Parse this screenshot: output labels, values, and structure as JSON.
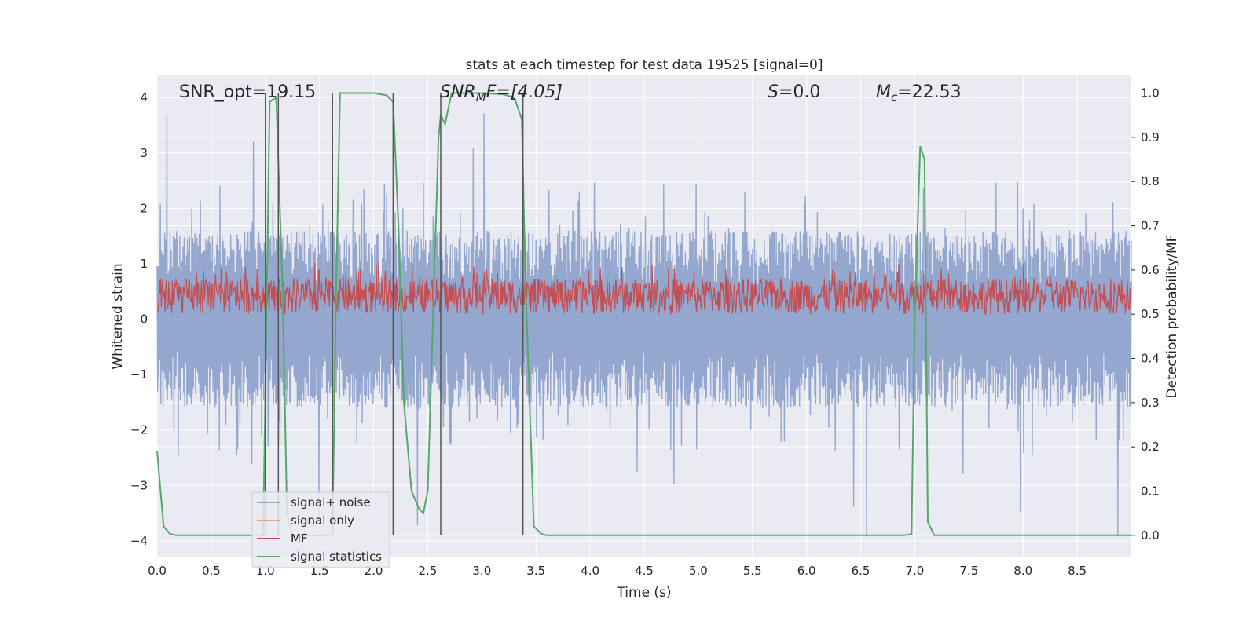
{
  "chart_data": {
    "type": "line",
    "title": "stats at each timestep for test data 19525 [signal=0]",
    "xlabel": "Time (s)",
    "ylabel_left": "Whitened strain",
    "ylabel_right": "Detection probability/MF",
    "xlim": [
      0,
      9
    ],
    "ylim_left": [
      -4.3,
      4.4
    ],
    "ylim_right": [
      -0.05,
      1.04
    ],
    "grid": true,
    "legend_position": "lower-left",
    "x_ticks": [
      "0.0",
      "0.5",
      "1.0",
      "1.5",
      "2.0",
      "2.5",
      "3.0",
      "3.5",
      "4.0",
      "4.5",
      "5.0",
      "5.5",
      "6.0",
      "6.5",
      "7.0",
      "7.5",
      "8.0",
      "8.5"
    ],
    "y_ticks_left": [
      "−4",
      "−3",
      "−2",
      "−1",
      "0",
      "1",
      "2",
      "3",
      "4"
    ],
    "y_ticks_right": [
      "0.0",
      "0.1",
      "0.2",
      "0.3",
      "0.4",
      "0.5",
      "0.6",
      "0.7",
      "0.8",
      "0.9",
      "1.0"
    ],
    "annotations": {
      "snr_opt": "SNR_opt=19.15",
      "snr_mf_base": "SNR",
      "snr_mf_sub": "M",
      "snr_mf_rest": "F=[4.05]",
      "s_var": "S",
      "s_rest": "=0.0",
      "mc_var": "M",
      "mc_sub": "c",
      "mc_rest": "=22.53"
    },
    "series": [
      {
        "name": "signal+ noise",
        "color": "#8fa3cc",
        "axis": "left",
        "description": "dense whitened strain noise, roughly symmetric around 0, amplitude mostly within ±1.6 with spikes to ±3.4",
        "x_range": [
          0,
          9
        ],
        "band_lo": -1.6,
        "band_hi": 1.6,
        "spike_max": 4.0,
        "spike_min": -3.9
      },
      {
        "name": "signal only",
        "color": "#e8a482",
        "axis": "left",
        "values": []
      },
      {
        "name": "MF",
        "color": "#c44e52",
        "axis": "right",
        "description": "matched-filter output fluctuating mostly between 0.50 and 0.58 with peaks to ~0.62",
        "base": 0.5,
        "typical_max": 0.58,
        "peak_max": 0.62
      },
      {
        "name": "signal statistics",
        "color": "#55a868",
        "axis": "right",
        "x": [
          0.0,
          0.06,
          0.12,
          0.18,
          0.3,
          0.5,
          0.8,
          0.98,
          1.01,
          1.04,
          1.1,
          1.16,
          1.2,
          1.25,
          1.5,
          1.62,
          1.65,
          1.69,
          1.75,
          2.0,
          2.12,
          2.18,
          2.23,
          2.28,
          2.35,
          2.42,
          2.46,
          2.5,
          2.55,
          2.6,
          2.62,
          2.66,
          2.72,
          2.8,
          3.0,
          3.2,
          3.3,
          3.37,
          3.4,
          3.48,
          3.55,
          3.6,
          3.8,
          4.5,
          5.5,
          6.5,
          6.9,
          6.97,
          7.0,
          7.05,
          7.09,
          7.12,
          7.18,
          7.3,
          8.0,
          9.0
        ],
        "y": [
          0.19,
          0.02,
          0.003,
          0.0,
          0.0,
          0.0,
          0.0,
          0.0,
          0.5,
          0.98,
          0.99,
          0.55,
          0.05,
          0.0,
          0.0,
          0.0,
          0.5,
          1.0,
          1.0,
          1.0,
          0.995,
          0.98,
          0.7,
          0.3,
          0.1,
          0.06,
          0.05,
          0.1,
          0.5,
          0.9,
          0.95,
          0.93,
          1.0,
          1.0,
          1.0,
          0.997,
          0.99,
          0.94,
          0.6,
          0.02,
          0.003,
          0.0,
          0.0,
          0.0,
          0.0,
          0.0,
          0.0,
          0.003,
          0.5,
          0.88,
          0.85,
          0.03,
          0.0,
          0.0,
          0.0,
          0.0
        ]
      }
    ],
    "vertical_lines": {
      "color": "#555555",
      "x": [
        1.0,
        1.12,
        1.62,
        2.18,
        2.62,
        3.38
      ],
      "y_top": 1.0,
      "y_bottom": 0.0
    }
  }
}
